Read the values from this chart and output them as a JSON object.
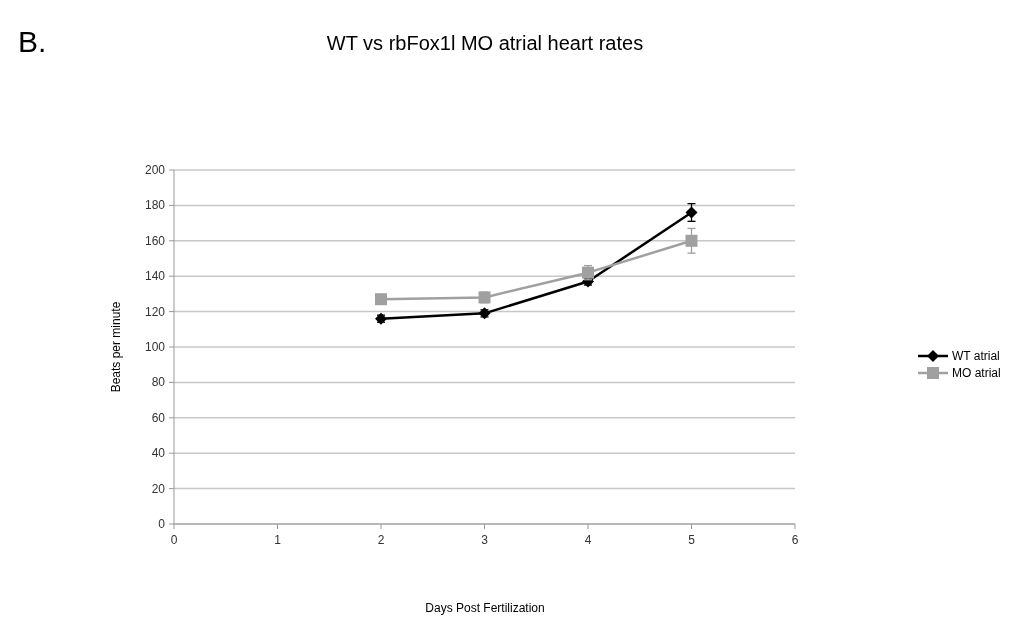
{
  "chart_data": {
    "type": "line",
    "title": "WT vs rbFox1l MO atrial heart rates",
    "xlabel": "Days Post Fertilization",
    "ylabel": "Beats per minute",
    "annotations": [
      "B."
    ],
    "x": [
      2,
      3,
      4,
      5
    ],
    "xlim": [
      0,
      6
    ],
    "xticks": [
      0,
      1,
      2,
      3,
      4,
      5,
      6
    ],
    "ylim": [
      0,
      200
    ],
    "yticks": [
      0,
      20,
      40,
      60,
      80,
      100,
      120,
      140,
      160,
      180,
      200
    ],
    "grid": "y",
    "legend": "right",
    "line_style": "solid",
    "series": [
      {
        "name": "WT atrial",
        "color": "#000000",
        "marker": "diamond",
        "values": [
          116,
          119,
          137,
          176
        ],
        "errors": [
          2,
          2,
          2,
          5
        ]
      },
      {
        "name": "MO atrial",
        "color": "#a0a0a0",
        "marker": "square",
        "values": [
          127,
          128,
          142,
          160
        ],
        "errors": [
          1,
          3,
          4,
          7
        ]
      }
    ]
  }
}
